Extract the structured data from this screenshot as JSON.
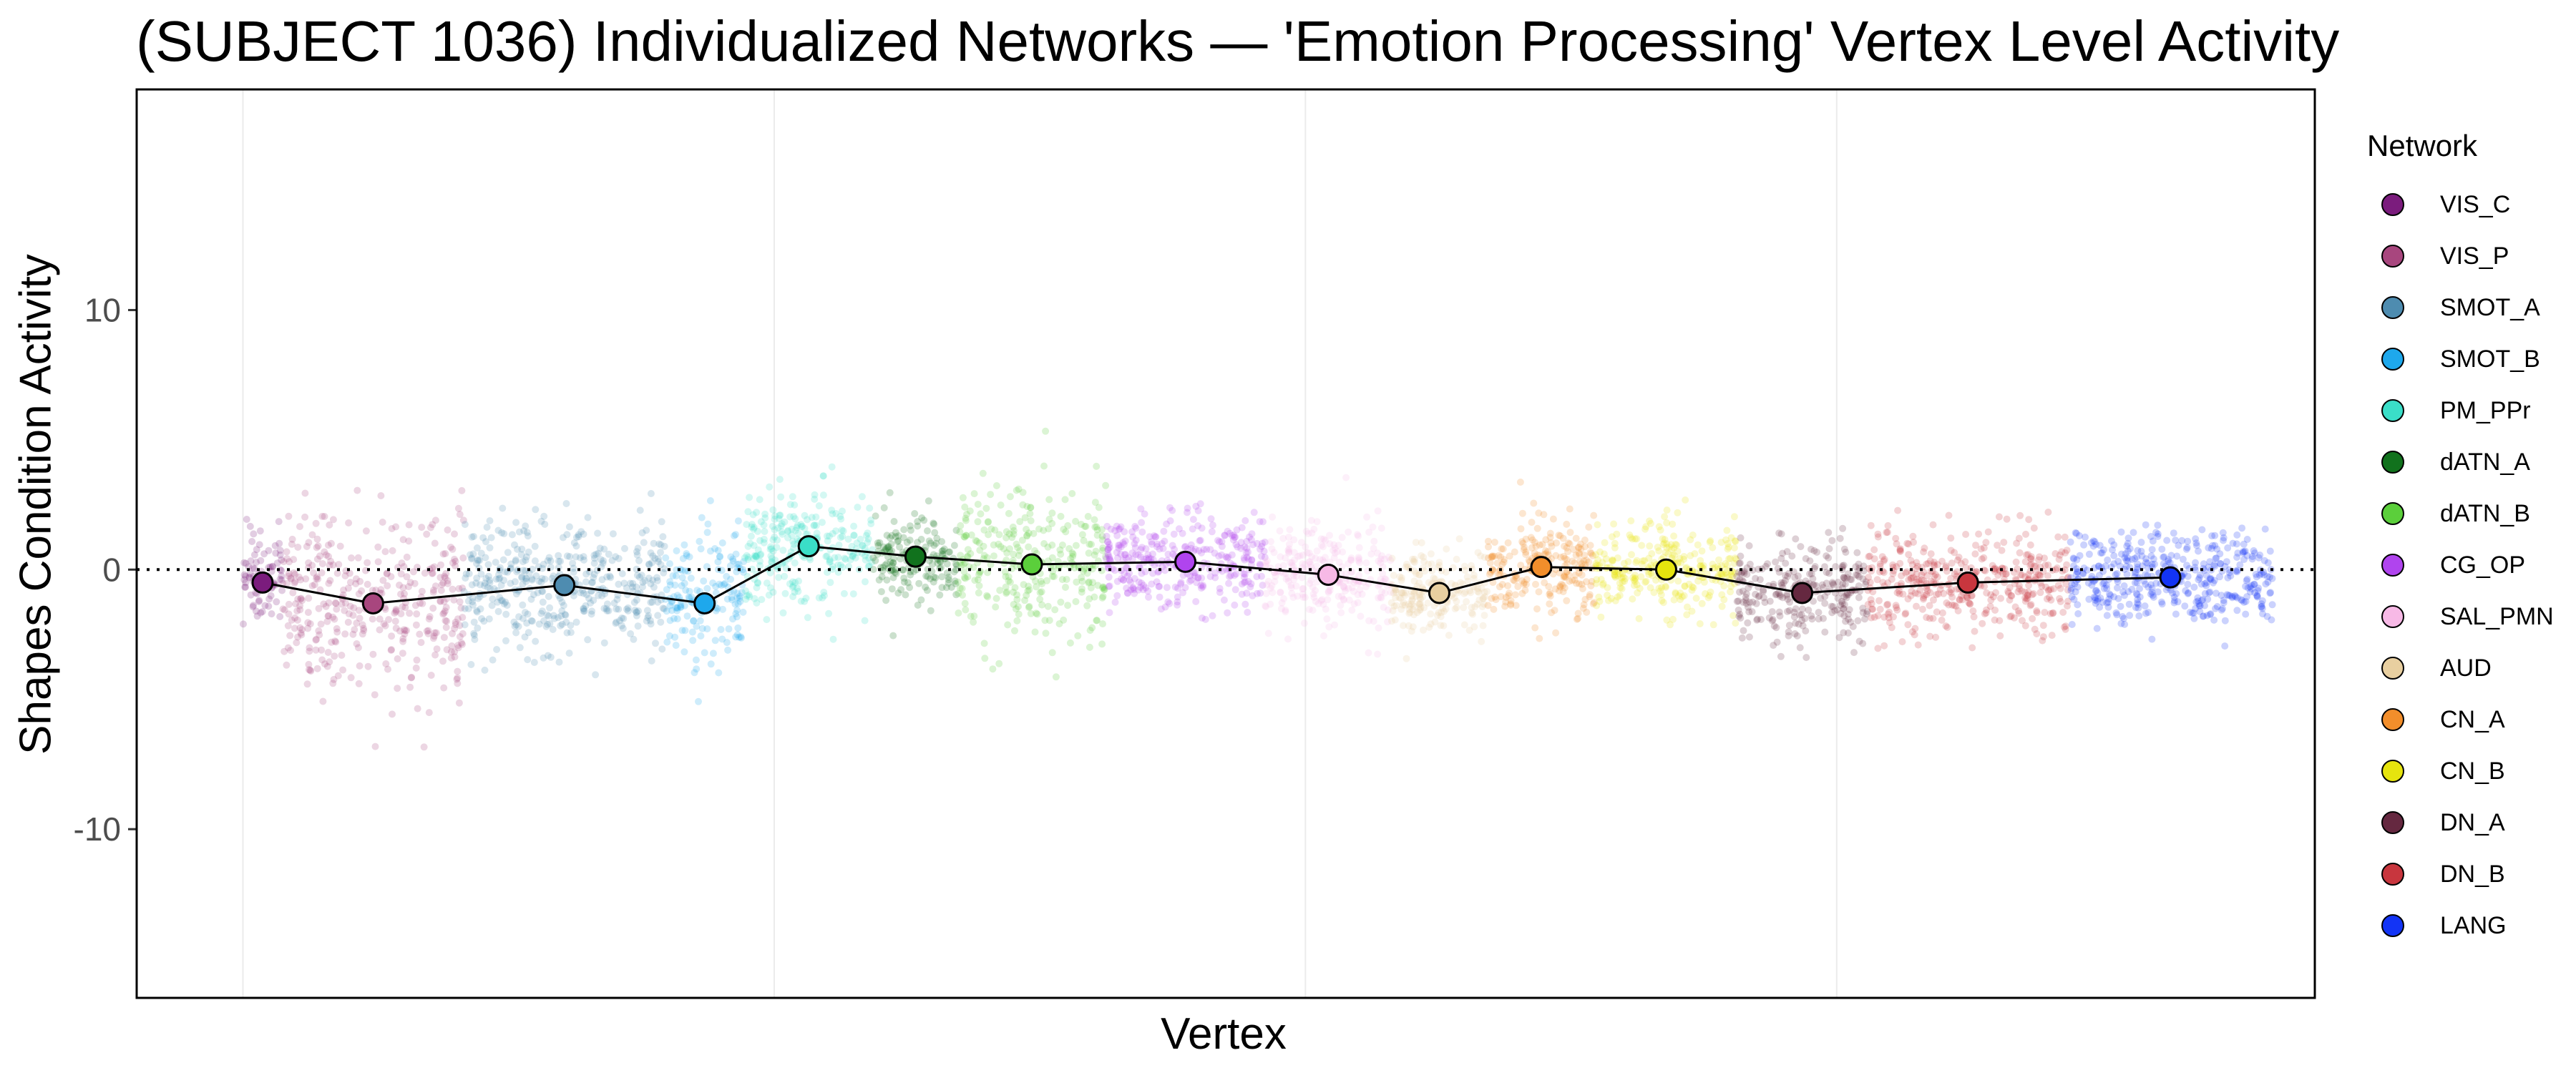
{
  "chart_data": {
    "type": "scatter",
    "title": "(SUBJECT 1036) Individualized Networks — 'Emotion Processing' Vertex Level Activity",
    "xlabel": "Vertex",
    "ylabel": "Shapes Condition Activity",
    "ylim": [
      -16.5,
      18.5
    ],
    "xlim": [
      -1000,
      19500
    ],
    "y_ticks": [
      10,
      0,
      -10
    ],
    "y_tick_labels": [
      "10",
      "0",
      "-10"
    ],
    "x_gridlines": [
      0,
      5000,
      10000,
      15000
    ],
    "reference_line_y": 0,
    "grid": true,
    "legend_title": "Network",
    "legend_position": "right",
    "networks": [
      {
        "name": "VIS_C",
        "color": "#7B1C7D",
        "x_start": 0,
        "x_end": 370,
        "mean": -0.5,
        "spread": 1.1
      },
      {
        "name": "VIS_P",
        "color": "#A8467E",
        "x_start": 370,
        "x_end": 2080,
        "mean": -1.3,
        "spread": 1.8
      },
      {
        "name": "SMOT_A",
        "color": "#4E8CB0",
        "x_start": 2080,
        "x_end": 3970,
        "mean": -0.6,
        "spread": 1.4
      },
      {
        "name": "SMOT_B",
        "color": "#1EA8EC",
        "x_start": 3970,
        "x_end": 4720,
        "mean": -1.3,
        "spread": 1.4
      },
      {
        "name": "PM_PPr",
        "color": "#3ADEC8",
        "x_start": 4720,
        "x_end": 5930,
        "mean": 0.9,
        "spread": 1.2
      },
      {
        "name": "dATN_A",
        "color": "#11721D",
        "x_start": 5930,
        "x_end": 6730,
        "mean": 0.5,
        "spread": 1.0
      },
      {
        "name": "dATN_B",
        "color": "#5BCF3B",
        "x_start": 6730,
        "x_end": 8120,
        "mean": 0.2,
        "spread": 1.6
      },
      {
        "name": "CG_OP",
        "color": "#B044EE",
        "x_start": 8120,
        "x_end": 9620,
        "mean": 0.3,
        "spread": 1.0
      },
      {
        "name": "SAL_PMN",
        "color": "#F7B9E6",
        "x_start": 9620,
        "x_end": 10810,
        "mean": -0.2,
        "spread": 1.1
      },
      {
        "name": "AUD",
        "color": "#E8CFA0",
        "x_start": 10810,
        "x_end": 11710,
        "mean": -0.9,
        "spread": 0.9
      },
      {
        "name": "CN_A",
        "color": "#F28E2B",
        "x_start": 11710,
        "x_end": 12730,
        "mean": 0.1,
        "spread": 1.1
      },
      {
        "name": "CN_B",
        "color": "#E6E40E",
        "x_start": 12730,
        "x_end": 14060,
        "mean": 0.0,
        "spread": 1.0
      },
      {
        "name": "DN_A",
        "color": "#652840",
        "x_start": 14060,
        "x_end": 15290,
        "mean": -0.9,
        "spread": 1.0
      },
      {
        "name": "DN_B",
        "color": "#C8363E",
        "x_start": 15290,
        "x_end": 17180,
        "mean": -0.5,
        "spread": 1.1
      },
      {
        "name": "LANG",
        "color": "#1334F5",
        "x_start": 17180,
        "x_end": 19100,
        "mean": -0.3,
        "spread": 1.0
      }
    ]
  }
}
